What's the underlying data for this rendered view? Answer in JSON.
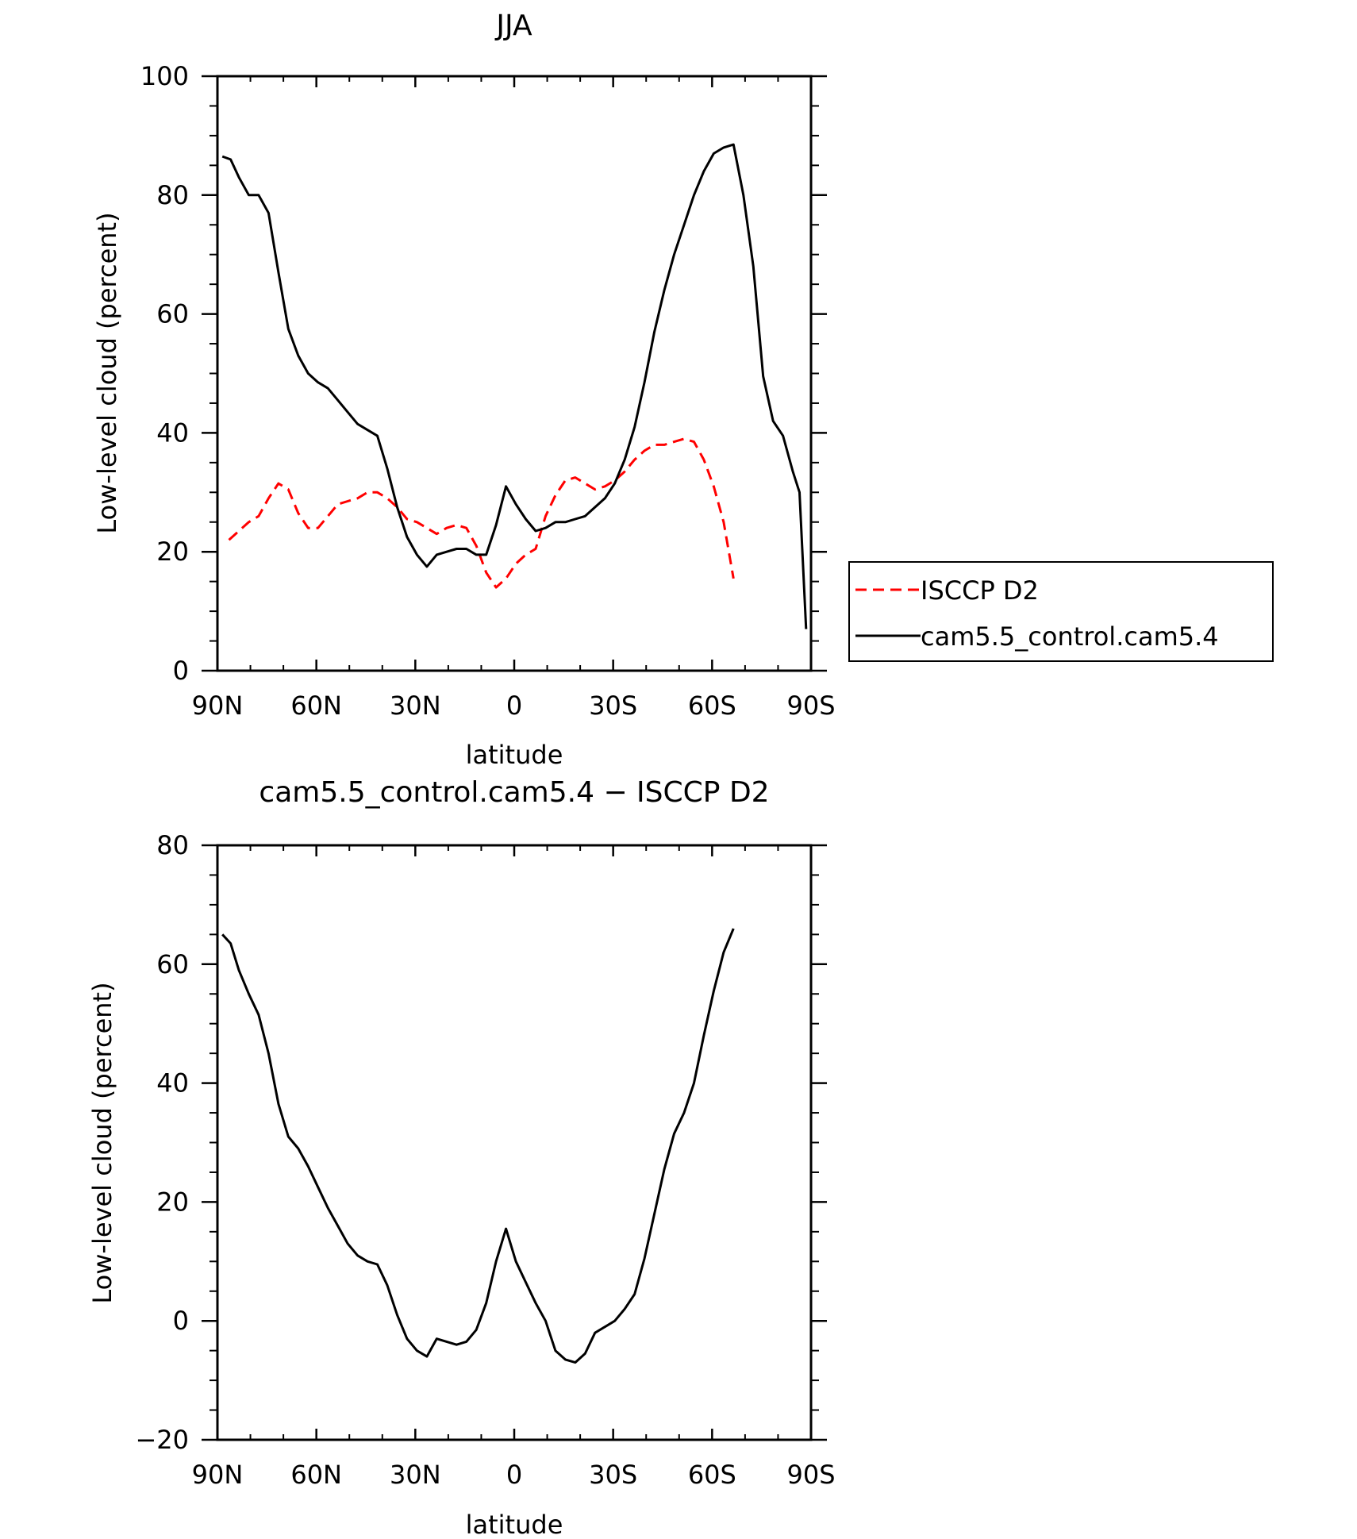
{
  "chart_data": [
    {
      "type": "line",
      "title": "JJA",
      "xlabel": "latitude",
      "ylabel": "Low-level cloud (percent)",
      "xlim": [
        90,
        -90
      ],
      "ylim": [
        0,
        100
      ],
      "x_ticks": [
        90,
        60,
        30,
        0,
        -30,
        -60,
        -90
      ],
      "x_tick_labels": [
        "90N",
        "60N",
        "30N",
        "0",
        "30S",
        "60S",
        "90S"
      ],
      "y_ticks": [
        0,
        20,
        40,
        60,
        80,
        100
      ],
      "y_tick_labels": [
        "0",
        "20",
        "40",
        "60",
        "80",
        "100"
      ],
      "grid": false,
      "legend_position": "right",
      "series": [
        {
          "name": "ISCCP D2",
          "color": "#ff0000",
          "style": "dashed",
          "x": [
            86.5,
            83.5,
            80.5,
            77.5,
            74.5,
            71.5,
            68.5,
            65.5,
            62.5,
            59.5,
            56.5,
            53.5,
            50.5,
            47.5,
            44.5,
            41.5,
            38.5,
            35.5,
            32.5,
            29.5,
            26.5,
            23.5,
            20.5,
            17.5,
            14.5,
            11.5,
            8.5,
            5.5,
            2.5,
            -0.5,
            -3.5,
            -6.5,
            -9.5,
            -12.5,
            -15.5,
            -18.5,
            -21.5,
            -24.5,
            -27.5,
            -30.5,
            -33.5,
            -36.5,
            -39.5,
            -42.5,
            -45.5,
            -48.5,
            -51.5,
            -54.5,
            -57.5,
            -60.5,
            -63.5,
            -66.5
          ],
          "y": [
            22.0,
            23.5,
            25.0,
            26.0,
            29.0,
            31.5,
            30.5,
            26.5,
            24.0,
            24.0,
            26.0,
            28.0,
            28.5,
            29.0,
            30.0,
            30.0,
            29.0,
            27.5,
            25.5,
            25.0,
            24.0,
            23.0,
            24.0,
            24.5,
            24.0,
            21.0,
            16.5,
            14.0,
            15.5,
            18.0,
            19.5,
            20.5,
            26.0,
            29.5,
            32.0,
            32.5,
            31.5,
            30.5,
            31.0,
            32.0,
            33.5,
            35.5,
            37.0,
            38.0,
            38.0,
            38.5,
            39.0,
            38.5,
            35.5,
            31.0,
            25.0,
            15.5
          ]
        },
        {
          "name": "cam5.5_control.cam5.4",
          "color": "#000000",
          "style": "solid",
          "x": [
            88.5,
            86,
            83.5,
            80.5,
            77.5,
            74.5,
            71.5,
            68.5,
            65.5,
            62.5,
            59.5,
            56.5,
            53.5,
            50.5,
            47.5,
            44.5,
            41.5,
            38.5,
            35.5,
            32.5,
            29.5,
            26.5,
            23.5,
            20.5,
            17.5,
            14.5,
            11.5,
            8.5,
            5.5,
            2.5,
            -0.5,
            -3.5,
            -6.5,
            -9.5,
            -12.5,
            -15.5,
            -18.5,
            -21.5,
            -24.5,
            -27.5,
            -30.5,
            -33.5,
            -36.5,
            -39.5,
            -42.5,
            -45.5,
            -48.5,
            -51.5,
            -54.5,
            -57.5,
            -60.5,
            -63.5,
            -66.5,
            -69.5,
            -72.5,
            -75.5,
            -78.5,
            -81.5,
            -84.5,
            -86.5,
            -88.5
          ],
          "y": [
            86.5,
            86.0,
            83.0,
            80.0,
            80.0,
            77.0,
            67.0,
            57.5,
            53.0,
            50.0,
            48.5,
            47.5,
            45.5,
            43.5,
            41.5,
            40.5,
            39.5,
            34.0,
            27.5,
            22.5,
            19.5,
            17.5,
            19.5,
            20.0,
            20.5,
            20.5,
            19.5,
            19.5,
            24.5,
            31.0,
            28.0,
            25.5,
            23.5,
            24.0,
            25.0,
            25.0,
            25.5,
            26.0,
            27.5,
            29.0,
            31.5,
            35.5,
            41.0,
            48.5,
            57.0,
            64.0,
            70.0,
            75.0,
            80.0,
            84.0,
            87.0,
            88.0,
            88.5,
            80.0,
            68.0,
            49.5,
            42.0,
            39.5,
            33.5,
            30.0,
            7.0
          ]
        }
      ]
    },
    {
      "type": "line",
      "title": "cam5.5_control.cam5.4 − ISCCP D2",
      "xlabel": "latitude",
      "ylabel": "Low-level cloud (percent)",
      "xlim": [
        90,
        -90
      ],
      "ylim": [
        -20,
        80
      ],
      "x_ticks": [
        90,
        60,
        30,
        0,
        -30,
        -60,
        -90
      ],
      "x_tick_labels": [
        "90N",
        "60N",
        "30N",
        "0",
        "30S",
        "60S",
        "90S"
      ],
      "y_ticks": [
        -20,
        0,
        20,
        40,
        60,
        80
      ],
      "y_tick_labels": [
        "−20",
        "0",
        "20",
        "40",
        "60",
        "80"
      ],
      "grid": false,
      "series": [
        {
          "color": "#000000",
          "style": "solid",
          "x": [
            88.5,
            86,
            83.5,
            80.5,
            77.5,
            74.5,
            71.5,
            68.5,
            65.5,
            62.5,
            59.5,
            56.5,
            53.5,
            50.5,
            47.5,
            44.5,
            41.5,
            38.5,
            35.5,
            32.5,
            29.5,
            26.5,
            23.5,
            20.5,
            17.5,
            14.5,
            11.5,
            8.5,
            5.5,
            2.5,
            -0.5,
            -3.5,
            -6.5,
            -9.5,
            -12.5,
            -15.5,
            -18.5,
            -21.5,
            -24.5,
            -27.5,
            -30.5,
            -33.5,
            -36.5,
            -39.5,
            -42.5,
            -45.5,
            -48.5,
            -51.5,
            -54.5,
            -57.5,
            -60.5,
            -63.5,
            -66.5
          ],
          "y": [
            65.0,
            63.5,
            59.0,
            55.0,
            51.5,
            45.0,
            36.5,
            31.0,
            29.0,
            26.0,
            22.5,
            19.0,
            16.0,
            13.0,
            11.0,
            10.0,
            9.5,
            6.0,
            1.0,
            -3.0,
            -5.0,
            -6.0,
            -3.0,
            -3.5,
            -4.0,
            -3.5,
            -1.5,
            3.0,
            10.0,
            15.5,
            10.0,
            6.5,
            3.0,
            0.0,
            -5.0,
            -6.5,
            -7.0,
            -5.5,
            -2.0,
            -1.0,
            0.0,
            2.0,
            4.5,
            10.5,
            18.0,
            25.5,
            31.5,
            35.0,
            40.0,
            48.0,
            55.5,
            62.0,
            66.0
          ]
        }
      ]
    }
  ],
  "legend": {
    "entries": [
      {
        "label": "ISCCP D2",
        "color": "#ff0000",
        "style": "dashed"
      },
      {
        "label": "cam5.5_control.cam5.4",
        "color": "#000000",
        "style": "solid"
      }
    ]
  }
}
